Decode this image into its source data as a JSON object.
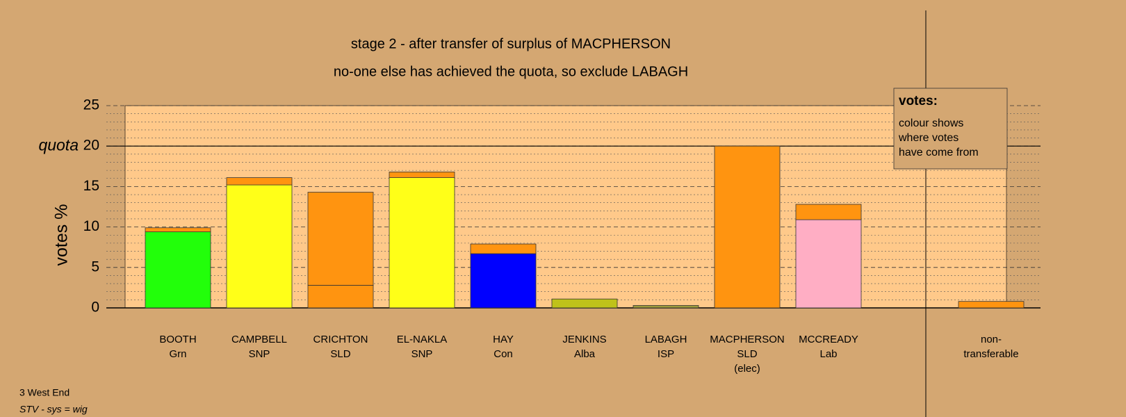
{
  "chart_data": {
    "type": "stacked_bar",
    "title": "stage 2 - after transfer of surplus of MACPHERSON",
    "subtitle": "no-one else has achieved the quota, so exclude LABAGH",
    "ylabel": "votes %",
    "quota": 20,
    "quota_label": "quota",
    "categories": [
      [
        "BOOTH",
        "Grn"
      ],
      [
        "CAMPBELL",
        "SNP"
      ],
      [
        "CRICHTON",
        "SLD"
      ],
      [
        "EL-NAKLA",
        "SNP"
      ],
      [
        "HAY",
        "Con"
      ],
      [
        "JENKINS",
        "Alba"
      ],
      [
        "LABAGH",
        "ISP"
      ],
      [
        "MACPHERSON",
        "SLD",
        "(elec)"
      ],
      [
        "MCCREADY",
        "Lab"
      ],
      null,
      [
        "non-",
        "transferable"
      ]
    ],
    "series": [
      {
        "colors": [
          "#22ff0a",
          "#ffff18",
          "#ff9410",
          "#ffff18",
          "#0000ff",
          "#bfc21a",
          "#9c9a3c",
          "#ff9410",
          "#ffaec4",
          null,
          null
        ],
        "values": [
          9.4,
          15.2,
          2.8,
          16.1,
          6.7,
          1.1,
          0.3,
          20,
          10.9,
          null,
          null
        ]
      },
      {
        "color": "#ff9410",
        "values": [
          0.5,
          0.9,
          11.5,
          0.7,
          1.2,
          0,
          0,
          0,
          1.9,
          null,
          0.8
        ]
      }
    ],
    "ylim": [
      0,
      25
    ],
    "yticks": [
      0,
      5,
      10,
      15,
      20,
      25
    ],
    "minor_yticks": [
      1,
      2,
      3,
      4,
      6,
      7,
      8,
      9,
      11,
      12,
      13,
      14,
      16,
      17,
      18,
      19,
      21,
      22,
      23,
      24
    ],
    "legend": {
      "title": "votes:",
      "lines": [
        "colour shows",
        "where votes",
        "have come from"
      ]
    },
    "footer": [
      "3 West End",
      "STV - sys = wig"
    ]
  }
}
